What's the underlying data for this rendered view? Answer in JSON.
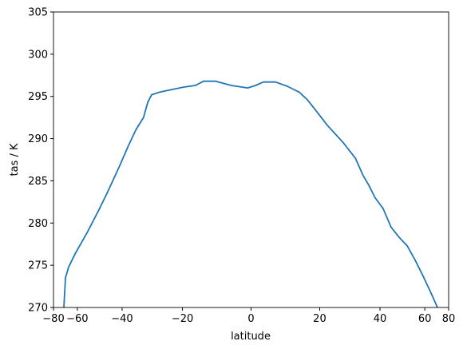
{
  "chart_data": {
    "type": "line",
    "xlabel": "latitude",
    "ylabel": "tas / K",
    "xscale": "sine",
    "x": [
      -68.9,
      -67.7,
      -65.4,
      -60.9,
      -54.5,
      -48.9,
      -45.6,
      -40.9,
      -37.9,
      -35.1,
      -32.4,
      -31.0,
      -29.7,
      -27.1,
      -24.6,
      -19.7,
      -16.1,
      -13.7,
      -10.2,
      -5.6,
      -1.0,
      1.3,
      3.5,
      7.0,
      10.4,
      13.9,
      16.3,
      18.7,
      22.3,
      27.4,
      31.3,
      34.0,
      35.9,
      38.2,
      41.2,
      44.3,
      47.6,
      51.1,
      54.9,
      59.1,
      63.8,
      68.3
    ],
    "series": [
      {
        "color": "#1f77b4",
        "values": [
          270,
          273.5,
          274.8,
          276.5,
          279,
          281.8,
          283.7,
          286.8,
          289,
          291,
          292.5,
          294.3,
          295.2,
          295.5,
          295.7,
          296.1,
          296.3,
          296.8,
          296.8,
          296.3,
          296,
          296.3,
          296.7,
          296.7,
          296.2,
          295.5,
          294.6,
          293.4,
          291.6,
          289.5,
          287.7,
          285.6,
          284.5,
          283,
          281.7,
          279.5,
          278.3,
          277.3,
          275.6,
          273.7,
          271.7,
          270
        ]
      }
    ],
    "xlim": [
      -80,
      80
    ],
    "xticks": [
      {
        "value": -80,
        "label": "−80"
      },
      {
        "value": -60,
        "label": "−60"
      },
      {
        "value": -40,
        "label": "−40"
      },
      {
        "value": -20,
        "label": "−20"
      },
      0,
      20,
      40,
      60,
      80
    ],
    "ylim": [
      270,
      305
    ],
    "yticks": [
      270,
      275,
      280,
      285,
      290,
      295,
      300,
      305
    ]
  }
}
